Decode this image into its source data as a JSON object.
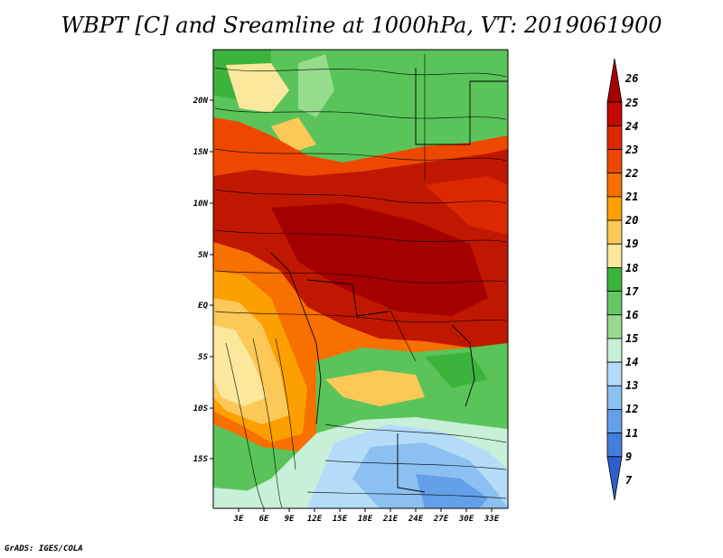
{
  "title": "WBPT [C] and Sreamline at 1000hPa, VT: 2019061900",
  "footer": "GrADS: IGES/COLA",
  "map": {
    "lat_labels": [
      "20N",
      "15N",
      "10N",
      "5N",
      "EQ",
      "5S",
      "10S",
      "15S"
    ],
    "lon_labels": [
      "3E",
      "6E",
      "9E",
      "12E",
      "15E",
      "18E",
      "21E",
      "24E",
      "27E",
      "30E",
      "33E"
    ]
  },
  "colorbar": {
    "labels": [
      "26",
      "25",
      "24",
      "23",
      "22",
      "21",
      "20",
      "19",
      "18",
      "17",
      "16",
      "15",
      "14",
      "13",
      "12",
      "11",
      "9",
      "7"
    ],
    "colors": [
      "#a50000",
      "#c20a00",
      "#dc2800",
      "#ee4800",
      "#f87000",
      "#fca000",
      "#fcc858",
      "#fce89c",
      "#3cb43c",
      "#64c864",
      "#96dc8c",
      "#c8f0d8",
      "#b4dcf8",
      "#8cc0f0",
      "#64a0e8",
      "#4080dc",
      "#2c60d0"
    ]
  },
  "colors": {
    "tropical": "#c01800",
    "sahel": "#ea5400",
    "savanna": "#fcc858",
    "north_green": "#5ac45a",
    "south_blue": "#8cc0f0"
  }
}
